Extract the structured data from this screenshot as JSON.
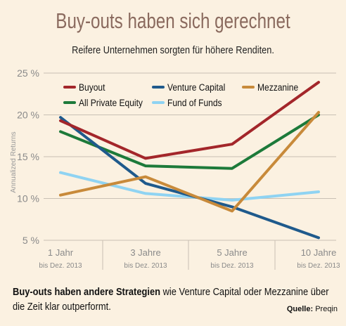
{
  "title": "Buy-outs haben sich gerechnet",
  "subtitle": "Reifere Unternehmen sorgten für höhere Renditen.",
  "chart_data": {
    "type": "line",
    "ylabel": "Annualized Returns",
    "ylim": [
      5,
      25
    ],
    "yticks": [
      "25 %",
      "20 %",
      "15 %",
      "10 %",
      "5 %"
    ],
    "ytick_values": [
      25,
      20,
      15,
      10,
      5
    ],
    "categories": [
      "1 Jahr",
      "3 Jahre",
      "5 Jahre",
      "10 Jahre"
    ],
    "category_sublabels": [
      "bis Dez. 2013",
      "bis Dez. 2013",
      "bis Dez. 2013",
      "bis Dez. 2013"
    ],
    "grid": true,
    "legend_position": "top",
    "series": [
      {
        "name": "Buyout",
        "color": "#a3262a",
        "values": [
          19.3,
          14.8,
          16.5,
          23.9
        ]
      },
      {
        "name": "Venture Capital",
        "color": "#1f5a8c",
        "values": [
          19.7,
          11.8,
          9.0,
          5.3
        ]
      },
      {
        "name": "Mezzanine",
        "color": "#c88a3a",
        "values": [
          10.4,
          12.6,
          8.5,
          20.3
        ]
      },
      {
        "name": "All Private Equity",
        "color": "#1d7a3a",
        "values": [
          18.0,
          13.9,
          13.6,
          20.0
        ]
      },
      {
        "name": "Fund of Funds",
        "color": "#8fd3f2",
        "values": [
          13.1,
          10.6,
          9.8,
          10.8
        ]
      }
    ]
  },
  "footer": {
    "bold_text": "Buy-outs haben andere Strategien",
    "text": " wie Venture Capital oder Mezzanine über die Zeit klar outperformt.",
    "source_label": "Quelle:",
    "source_value": " Preqin"
  }
}
